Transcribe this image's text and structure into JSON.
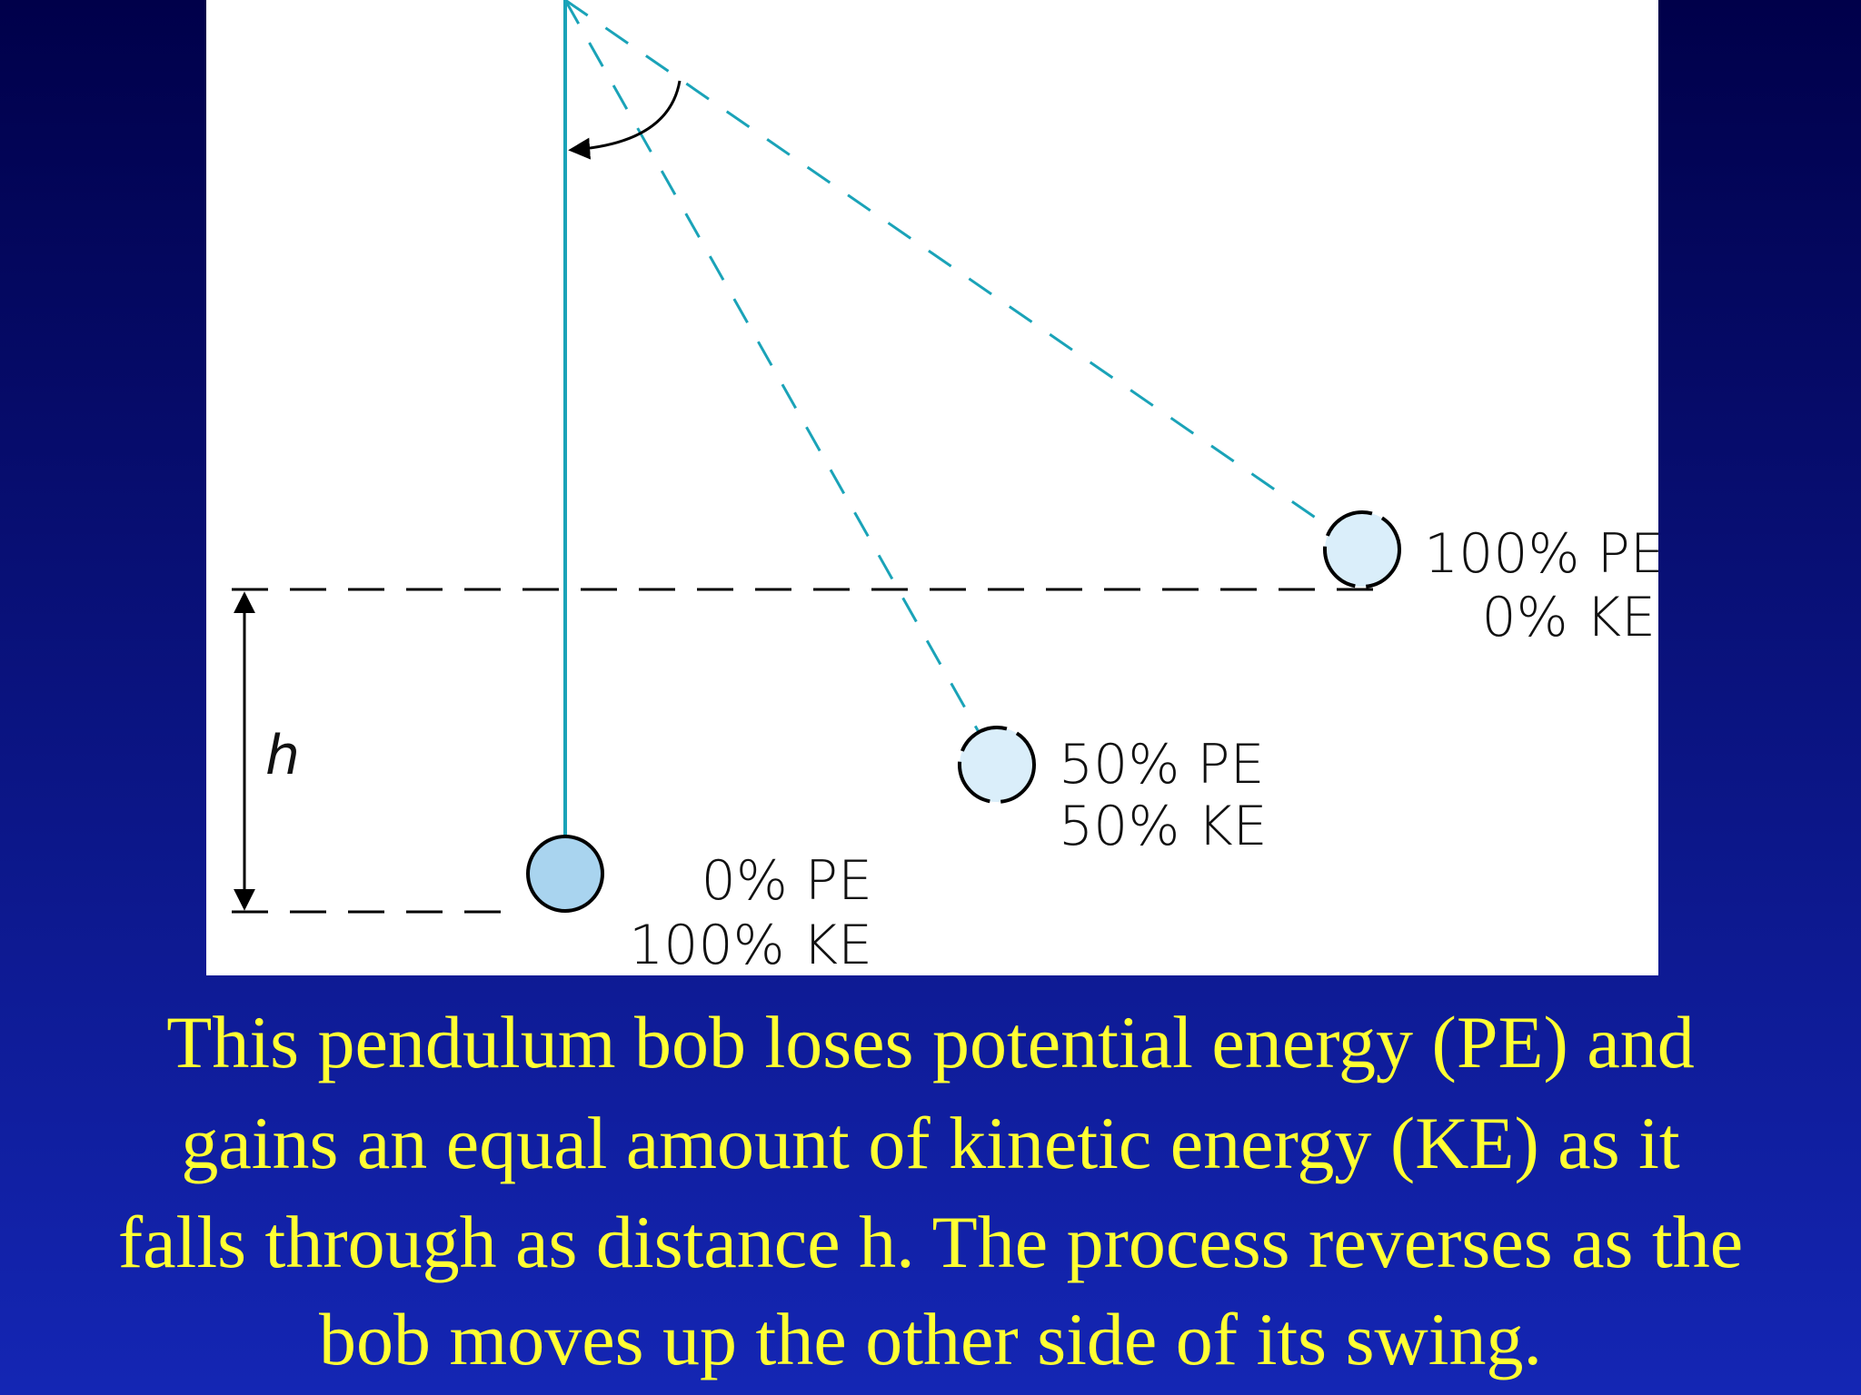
{
  "diagram": {
    "height_label": "h",
    "positions": [
      {
        "pe": "100% PE",
        "ke": "0% KE"
      },
      {
        "pe": "50% PE",
        "ke": "50% KE"
      },
      {
        "pe": "0% PE",
        "ke": "100% KE"
      }
    ]
  },
  "caption": {
    "lines": [
      "This pendulum bob loses potential energy (PE) and",
      "gains an equal amount of kinetic energy (KE) as it",
      "falls through as distance h. The process reverses as the",
      "bob moves up the other side of its swing."
    ]
  }
}
